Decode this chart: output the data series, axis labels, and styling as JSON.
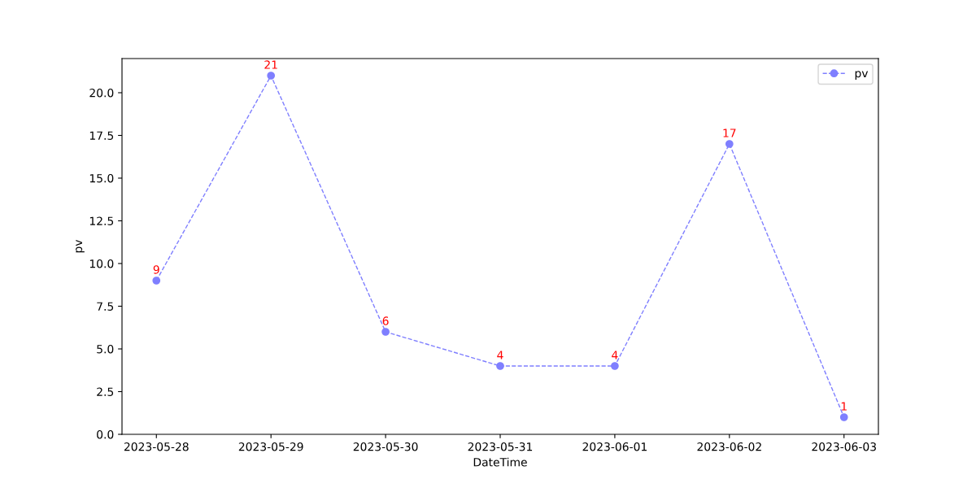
{
  "chart_data": {
    "type": "line",
    "xlabel": "DateTime",
    "ylabel": "pv",
    "categories": [
      "2023-05-28",
      "2023-05-29",
      "2023-05-30",
      "2023-05-31",
      "2023-06-01",
      "2023-06-02",
      "2023-06-03"
    ],
    "series": [
      {
        "name": "pv",
        "color": "#7f7fff",
        "values": [
          9,
          21,
          6,
          4,
          4,
          17,
          1
        ]
      }
    ],
    "ylim": [
      0,
      22
    ],
    "yticks": [
      {
        "value": 0,
        "label": "0.0"
      },
      {
        "value": 2.5,
        "label": "2.5"
      },
      {
        "value": 5,
        "label": "5.0"
      },
      {
        "value": 7.5,
        "label": "7.5"
      },
      {
        "value": 10,
        "label": "10.0"
      },
      {
        "value": 12.5,
        "label": "12.5"
      },
      {
        "value": 15,
        "label": "15.0"
      },
      {
        "value": 17.5,
        "label": "17.5"
      },
      {
        "value": 20,
        "label": "20.0"
      }
    ],
    "data_labels": true,
    "legend": "top right",
    "grid": false,
    "marker": "circle",
    "line_style": "dashed"
  }
}
